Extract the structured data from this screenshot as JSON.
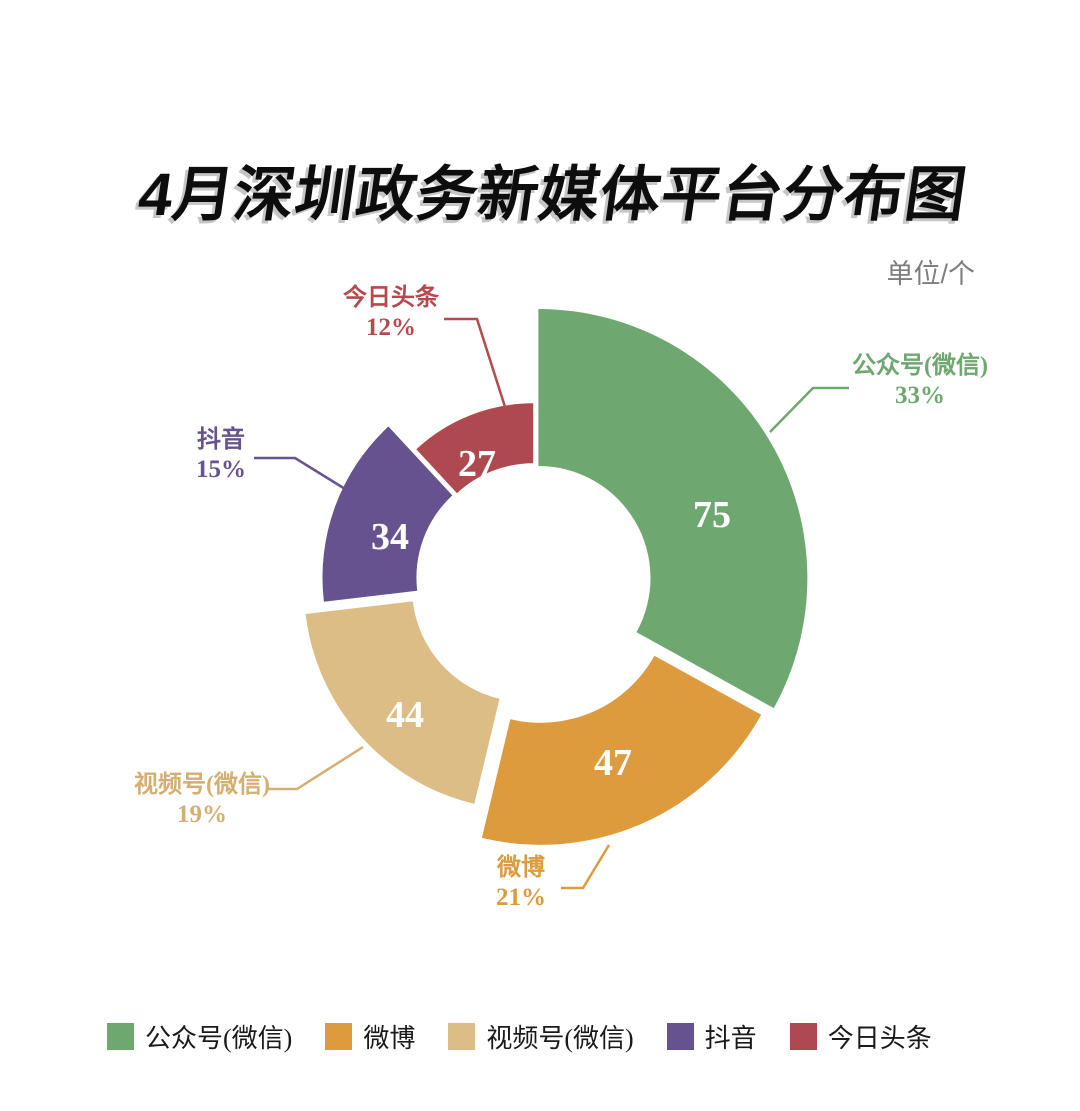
{
  "title": "4月深圳政务新媒体平台分布图",
  "unit_label": "单位/个",
  "chart_data": {
    "type": "pie",
    "subtype": "donut-rose",
    "title": "4月深圳政务新媒体平台分布图",
    "unit": "单位/个",
    "start_angle": "top",
    "direction": "clockwise",
    "legend_position": "bottom",
    "series": [
      {
        "key": "wechat-official",
        "name": "公众号(微信)",
        "value": 75,
        "percent": "33%",
        "color": "#6FA770",
        "label_color": "#6FA770"
      },
      {
        "key": "weibo",
        "name": "微博",
        "value": 47,
        "percent": "21%",
        "color": "#DD9B3E",
        "label_color": "#DD9B3E"
      },
      {
        "key": "wechat-video",
        "name": "视频号(微信)",
        "value": 44,
        "percent": "19%",
        "color": "#DCBD85",
        "label_color": "#D5AF72"
      },
      {
        "key": "douyin",
        "name": "抖音",
        "value": 34,
        "percent": "15%",
        "color": "#675290",
        "label_color": "#67538F"
      },
      {
        "key": "toutiao",
        "name": "今日头条",
        "value": 27,
        "percent": "12%",
        "color": "#AE4A4F",
        "label_color": "#B5494E"
      }
    ],
    "legend": [
      "公众号(微信)",
      "微博",
      "视频号(微信)",
      "抖音",
      "今日头条"
    ]
  }
}
